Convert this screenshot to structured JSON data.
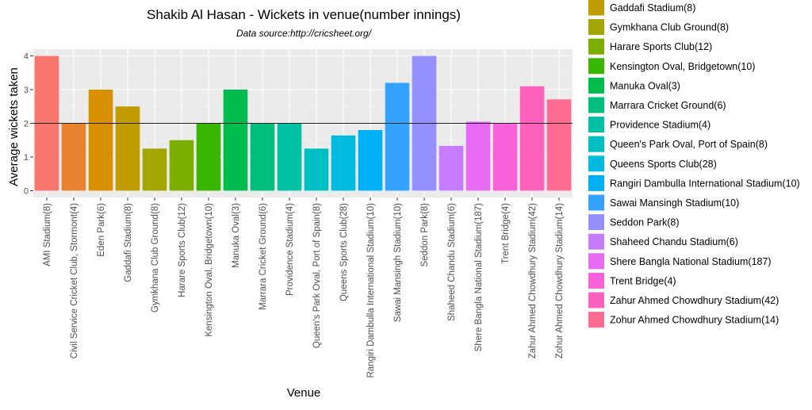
{
  "chart_data": {
    "type": "bar",
    "title": "Shakib Al Hasan - Wickets in venue(number innings)",
    "subtitle": "Data source:http://cricsheet.org/",
    "xlabel": "Venue",
    "ylabel": "Average wickets taken",
    "ylim": [
      -0.2,
      4.2
    ],
    "yticks": [
      0,
      1,
      2,
      3,
      4
    ],
    "grid": true,
    "reference_line": 2,
    "legend_position": "right",
    "categories": [
      "AMI Stadium(8)",
      "Civil Service Cricket Club, Stormont(4)",
      "Eden Park(6)",
      "Gaddafi Stadium(8)",
      "Gymkhana Club Ground(8)",
      "Harare Sports Club(12)",
      "Kensington Oval, Bridgetown(10)",
      "Manuka Oval(3)",
      "Marrara Cricket Ground(6)",
      "Providence Stadium(4)",
      "Queen's Park Oval, Port of Spain(8)",
      "Queens Sports Club(28)",
      "Rangiri Dambulla International Stadium(10)",
      "Sawai Mansingh Stadium(10)",
      "Seddon Park(8)",
      "Shaheed Chandu Stadium(6)",
      "Shere Bangla National Stadium(187)",
      "Trent Bridge(4)",
      "Zahur Ahmed Chowdhury Stadium(42)",
      "Zohur Ahmed Chowdhury Stadium(14)"
    ],
    "values": [
      4.0,
      2.0,
      3.0,
      2.5,
      1.25,
      1.5,
      2.0,
      3.0,
      2.0,
      2.0,
      1.25,
      1.64,
      1.8,
      3.2,
      4.0,
      1.33,
      2.05,
      2.0,
      3.1,
      2.71
    ],
    "colors": [
      "#F8766D",
      "#EA8331",
      "#D89000",
      "#C09B00",
      "#A3A500",
      "#7CAE00",
      "#39B600",
      "#00BB4E",
      "#00BF7D",
      "#00C1A3",
      "#00BFC4",
      "#00BAE0",
      "#00B0F6",
      "#35A2FF",
      "#9590FF",
      "#C77CFF",
      "#E76BF3",
      "#FA62DB",
      "#FF62BC",
      "#FF6C91"
    ],
    "legend_visible_from_index": 3
  }
}
